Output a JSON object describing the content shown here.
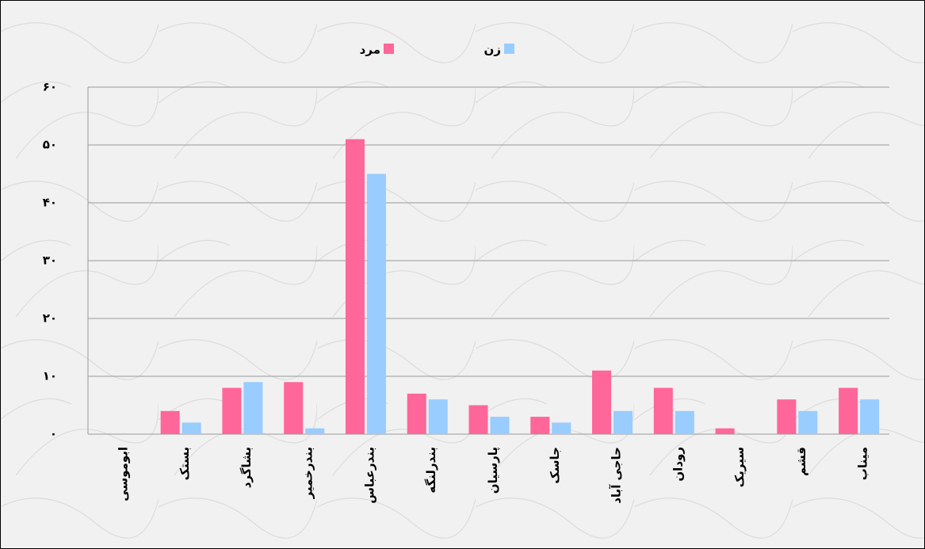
{
  "chart_data": {
    "type": "bar",
    "categories": [
      "ابوموسی",
      "بستک",
      "بشاگرد",
      "بندرخمیر",
      "بندرعباس",
      "بندرلنگه",
      "پارسیان",
      "جاسک",
      "حاجی آباد",
      "رودان",
      "سیریک",
      "قشم",
      "میناب"
    ],
    "series": [
      {
        "name": "مرد",
        "color": "#ff6699",
        "values": [
          0,
          4,
          8,
          9,
          51,
          7,
          5,
          3,
          11,
          8,
          1,
          6,
          8
        ]
      },
      {
        "name": "زن",
        "color": "#99ccff",
        "values": [
          0,
          2,
          9,
          1,
          45,
          6,
          3,
          2,
          4,
          4,
          0,
          4,
          6
        ]
      }
    ],
    "ylim": [
      0,
      60
    ],
    "yticks": [
      {
        "value": 0,
        "label": "۰"
      },
      {
        "value": 10,
        "label": "۱۰"
      },
      {
        "value": 20,
        "label": "۲۰"
      },
      {
        "value": 30,
        "label": "۳۰"
      },
      {
        "value": 40,
        "label": "۴۰"
      },
      {
        "value": 50,
        "label": "۵۰"
      },
      {
        "value": 60,
        "label": "۶۰"
      }
    ],
    "grid": true,
    "legend": "top"
  }
}
